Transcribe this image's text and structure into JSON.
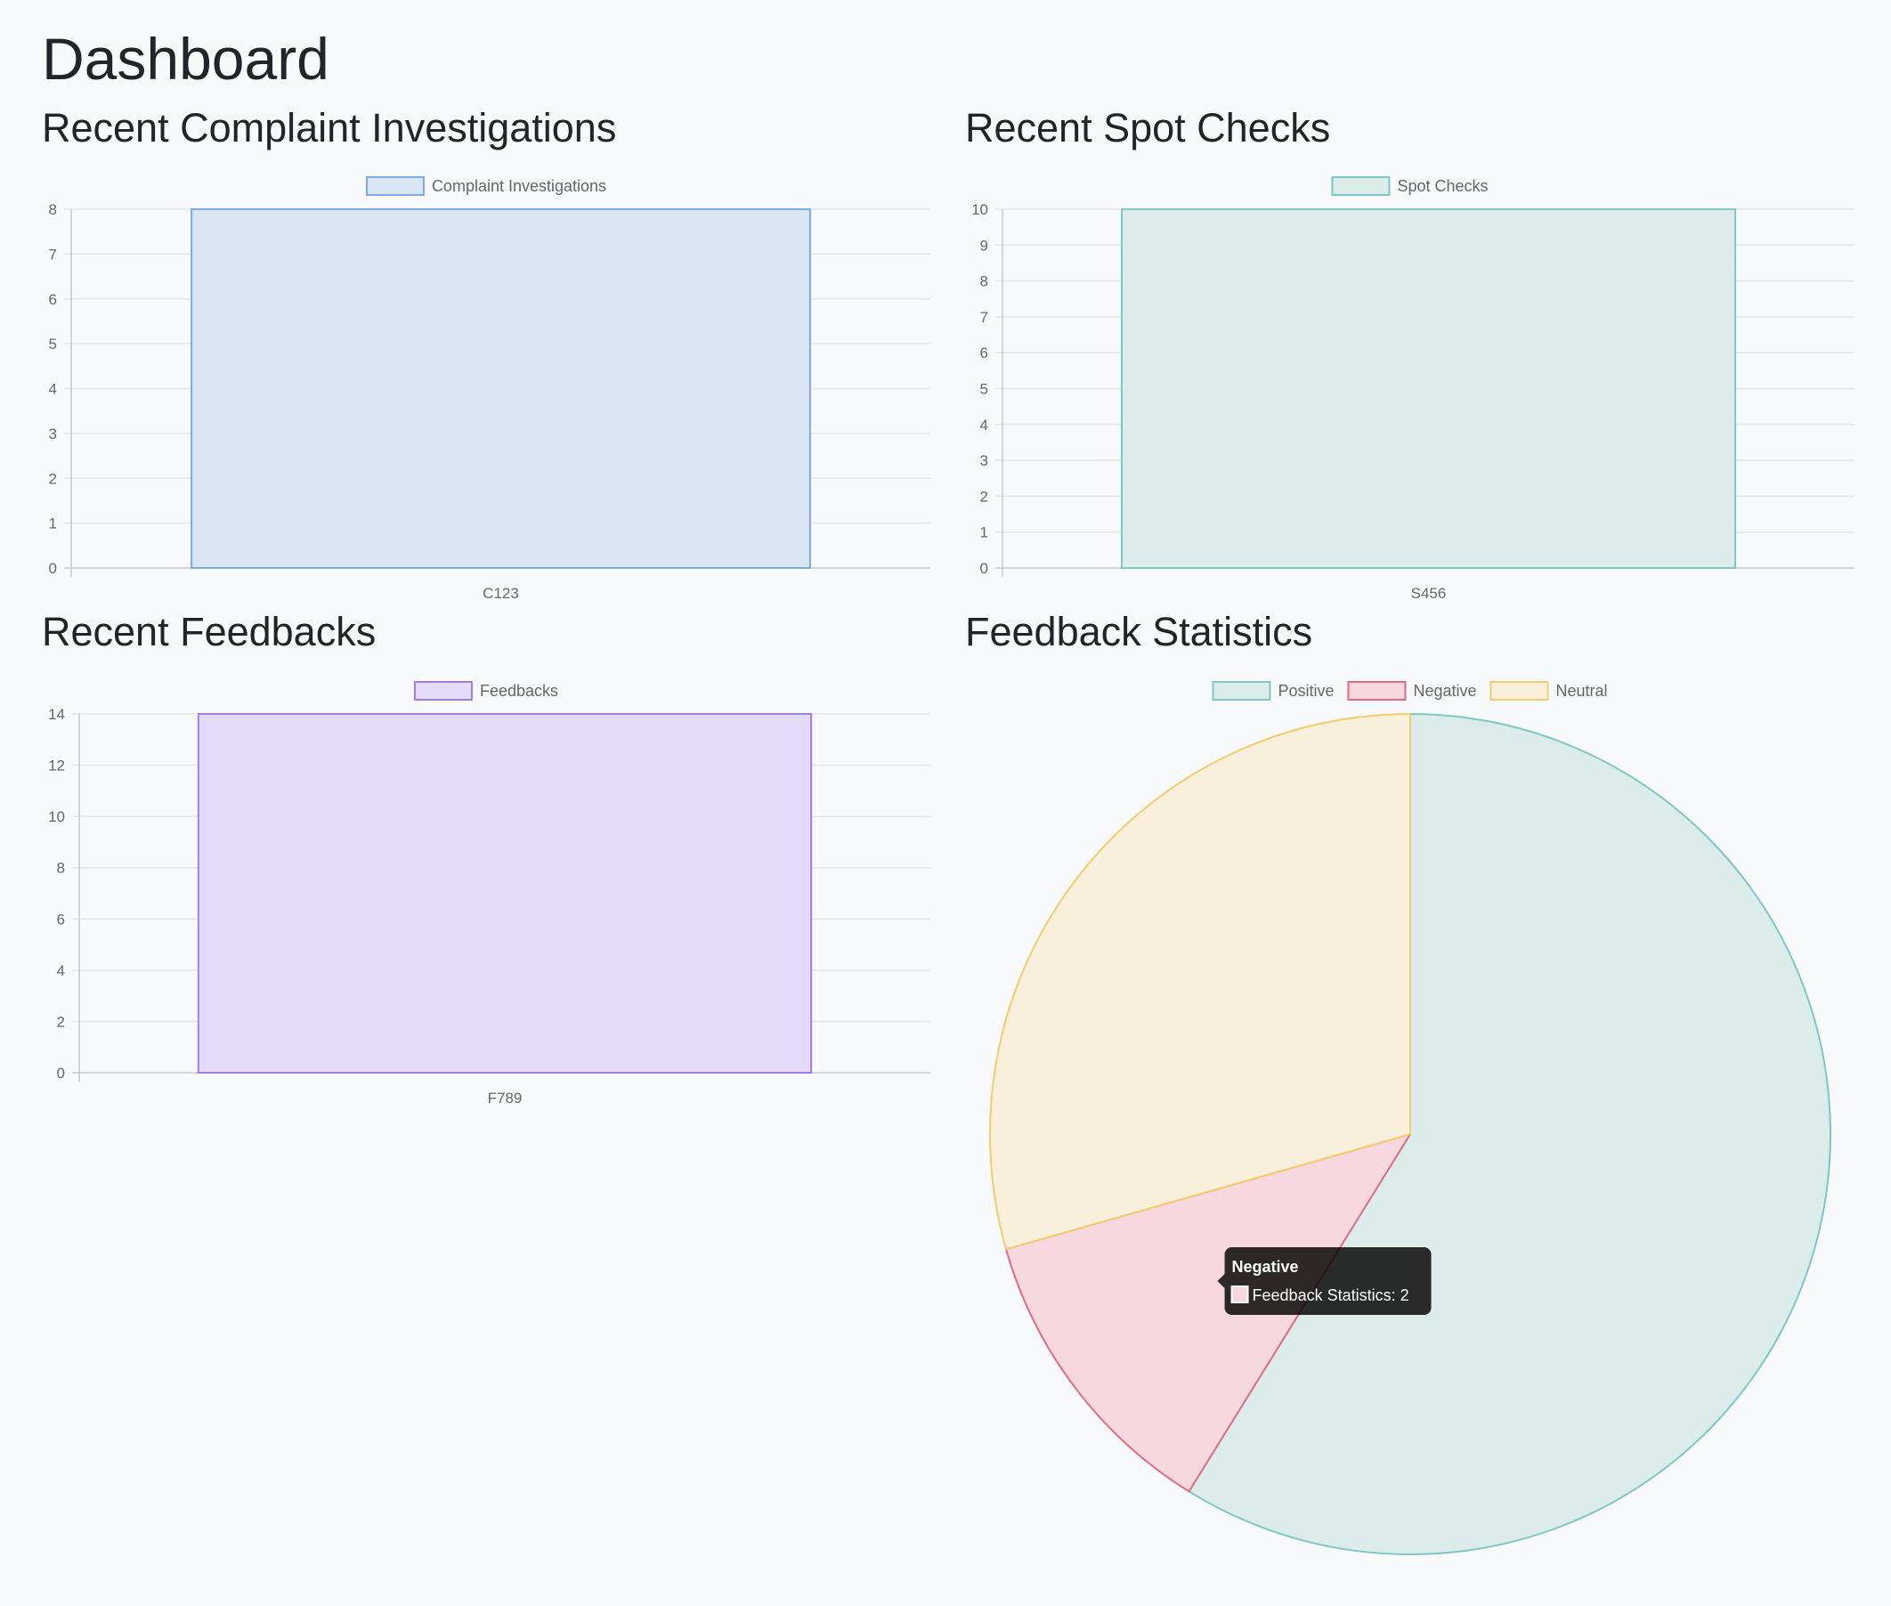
{
  "page": {
    "title": "Dashboard"
  },
  "sections": {
    "complaints": {
      "title": "Recent Complaint Investigations"
    },
    "spot_checks": {
      "title": "Recent Spot Checks"
    },
    "feedbacks": {
      "title": "Recent Feedbacks"
    },
    "feedback_stats": {
      "title": "Feedback Statistics"
    }
  },
  "chart_data": [
    {
      "id": "complaints",
      "type": "bar",
      "categories": [
        "C123"
      ],
      "series": [
        {
          "name": "Complaint Investigations",
          "values": [
            8
          ]
        }
      ],
      "ylim": [
        0,
        8
      ],
      "y_ticks": [
        "0",
        "1",
        "2",
        "3",
        "4",
        "5",
        "6",
        "7",
        "8"
      ],
      "grid": true,
      "legend": "top-center",
      "colors": {
        "fill": "#dae5f4",
        "stroke": "#7cabdf"
      }
    },
    {
      "id": "spot_checks",
      "type": "bar",
      "categories": [
        "S456"
      ],
      "series": [
        {
          "name": "Spot Checks",
          "values": [
            10
          ]
        }
      ],
      "ylim": [
        0,
        10
      ],
      "y_ticks": [
        "0",
        "1",
        "2",
        "3",
        "4",
        "5",
        "6",
        "7",
        "8",
        "9",
        "10"
      ],
      "grid": true,
      "legend": "top-center",
      "colors": {
        "fill": "#dbecea",
        "stroke": "#7fc7c3"
      }
    },
    {
      "id": "feedbacks",
      "type": "bar",
      "categories": [
        "F789"
      ],
      "series": [
        {
          "name": "Feedbacks",
          "values": [
            14
          ]
        }
      ],
      "ylim": [
        0,
        14
      ],
      "y_ticks": [
        "0",
        "2",
        "4",
        "6",
        "8",
        "10",
        "12",
        "14"
      ],
      "grid": true,
      "legend": "top-center",
      "colors": {
        "fill": "#e4dafa",
        "stroke": "#9f7ee8"
      }
    },
    {
      "id": "feedback_stats",
      "type": "pie",
      "series_name": "Feedback Statistics",
      "slices": [
        {
          "label": "Positive",
          "value": 10,
          "fill": "#dbecea",
          "stroke": "#7fc7c3"
        },
        {
          "label": "Negative",
          "value": 2,
          "fill": "#f7d8df",
          "stroke": "#e06b84"
        },
        {
          "label": "Neutral",
          "value": 5,
          "fill": "#f9f0dc",
          "stroke": "#f4cc6d"
        }
      ],
      "legend": "top-center",
      "tooltip": {
        "title": "Negative",
        "body": "Feedback Statistics: 2"
      }
    }
  ]
}
